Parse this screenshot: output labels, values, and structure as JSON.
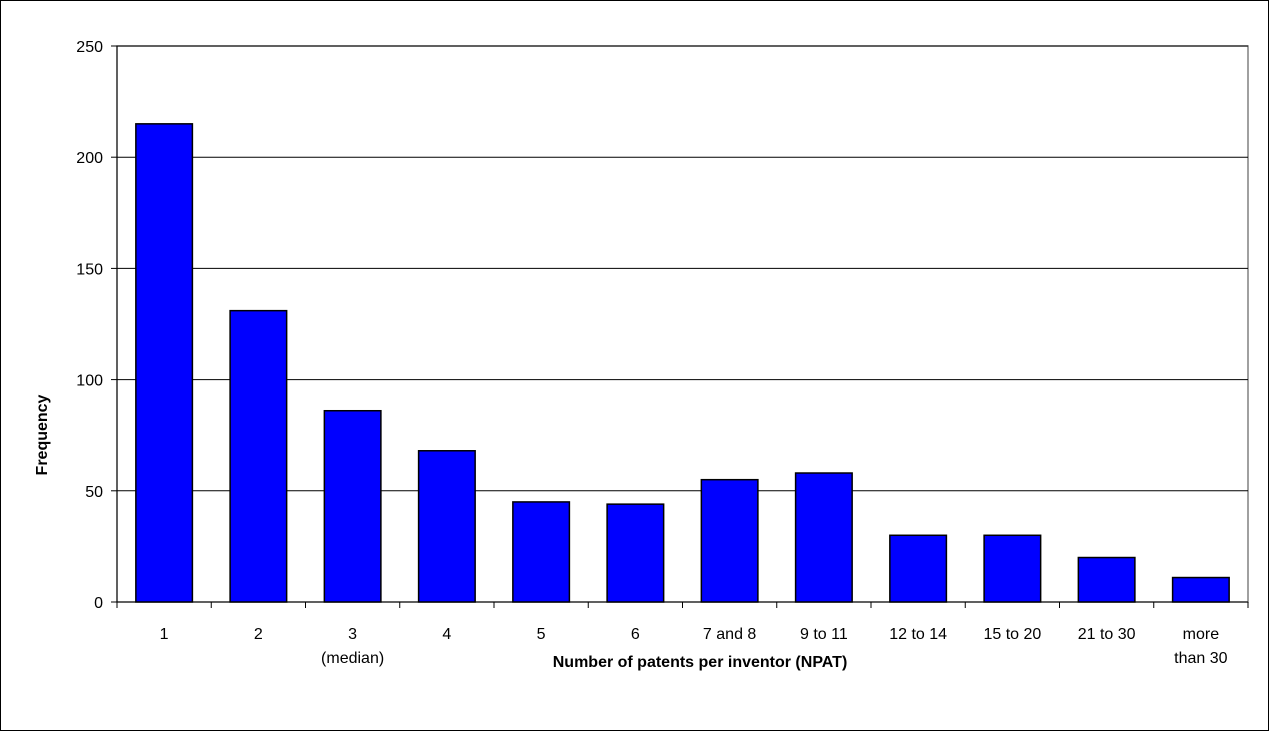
{
  "chart_data": {
    "type": "bar",
    "x_label": "Number of patents per inventor  (NPAT)",
    "y_label": "Frequency",
    "categories": [
      "1",
      "2",
      "3\n(median)",
      "4",
      "5",
      "6",
      "7 and 8",
      "9 to 11",
      "12 to 14",
      "15 to 20",
      "21 to 30",
      "more\nthan 30"
    ],
    "values": [
      215,
      131,
      86,
      68,
      45,
      44,
      55,
      58,
      30,
      30,
      20,
      11
    ],
    "color": "#0000ff",
    "ylim": [
      0,
      250
    ],
    "yticks": [
      0,
      50,
      100,
      150,
      200,
      250
    ],
    "grid": true
  }
}
